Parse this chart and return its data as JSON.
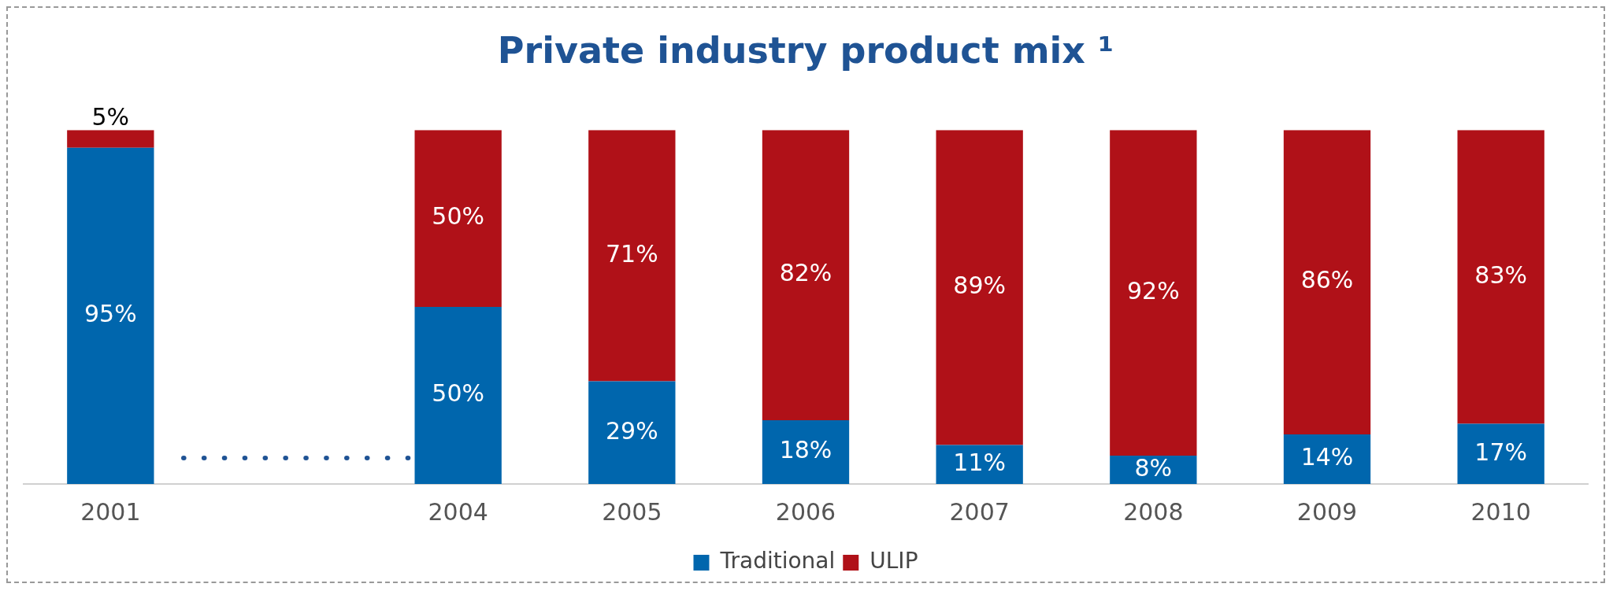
{
  "chart_data": {
    "type": "bar",
    "title": "Private industry product mix ¹",
    "categories": [
      "2001",
      null,
      "2004",
      "2005",
      "2006",
      "2007",
      "2008",
      "2009",
      "2010"
    ],
    "stacked": true,
    "legend": "bottom",
    "grid": false,
    "series": [
      {
        "name": "Traditional",
        "color": "#0066ad",
        "values": [
          95,
          null,
          50,
          29,
          18,
          11,
          8,
          14,
          17
        ],
        "value_labels": [
          "95%",
          null,
          "50%",
          "29%",
          "18%",
          "11%",
          "8%",
          "14%",
          "17%"
        ]
      },
      {
        "name": "ULIP",
        "color": "#b01118",
        "values": [
          5,
          null,
          50,
          71,
          82,
          89,
          92,
          86,
          83
        ],
        "value_labels": [
          "5%",
          null,
          "50%",
          "71%",
          "82%",
          "89%",
          "92%",
          "86%",
          "83%"
        ]
      }
    ]
  }
}
